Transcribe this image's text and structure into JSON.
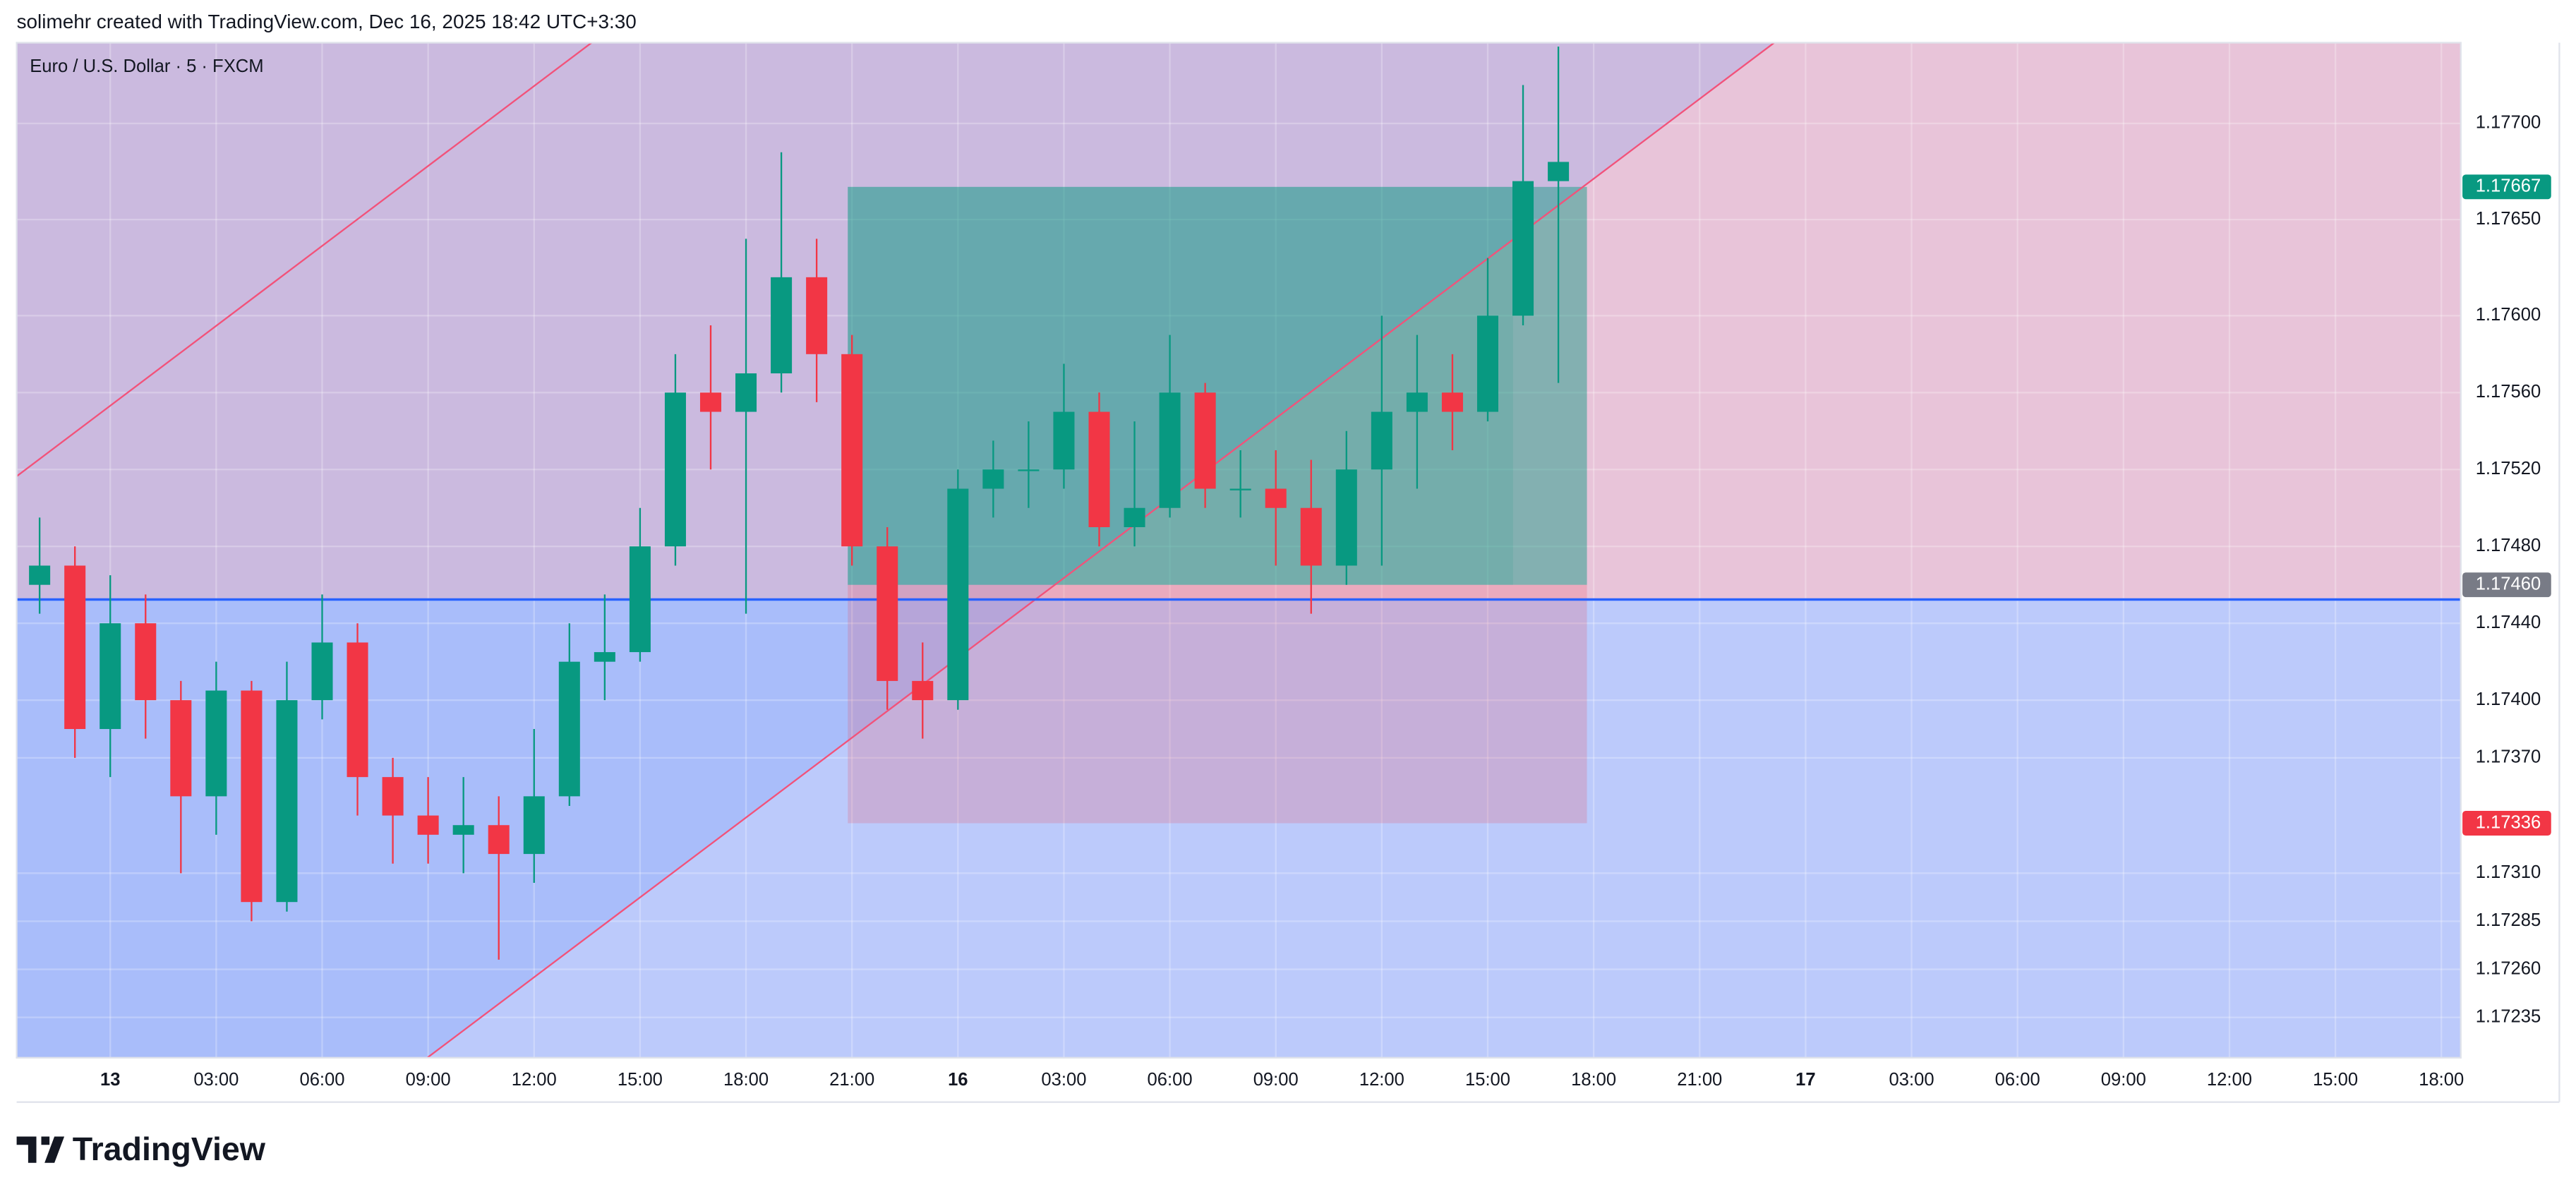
{
  "header": {
    "text": "solimehr created with TradingView.com, Dec 16, 2025 18:42 UTC+3:30"
  },
  "footer": {
    "logo": "TradingView"
  },
  "chart_data": {
    "type": "candlestick",
    "title": "Euro / U.S. Dollar · 5 · FXCM",
    "x": [
      -2,
      -1,
      0,
      1,
      2,
      3,
      4,
      5,
      6,
      7,
      8,
      9,
      10,
      11,
      12,
      13,
      14,
      15,
      16,
      17,
      18,
      19,
      20,
      21,
      22,
      23,
      24,
      25,
      26,
      27,
      28,
      29,
      30,
      31,
      32,
      33,
      34,
      35,
      36,
      37,
      38,
      39,
      40,
      41
    ],
    "open": [
      1.1746,
      1.1747,
      1.17385,
      1.1744,
      1.174,
      1.1735,
      1.17405,
      1.17295,
      1.174,
      1.1743,
      1.1736,
      1.1734,
      1.1733,
      1.17335,
      1.1732,
      1.1735,
      1.1742,
      1.17425,
      1.1748,
      1.1756,
      1.1755,
      1.1757,
      1.1762,
      1.1758,
      1.1748,
      1.1741,
      1.174,
      1.1751,
      1.1752,
      1.1752,
      1.1755,
      1.1749,
      1.175,
      1.1756,
      1.1751,
      1.1751,
      1.175,
      1.1747,
      1.1752,
      1.1755,
      1.1756,
      1.1755,
      1.176,
      1.1767
    ],
    "high": [
      1.17495,
      1.1748,
      1.17465,
      1.17455,
      1.1741,
      1.1742,
      1.1741,
      1.1742,
      1.17455,
      1.1744,
      1.1737,
      1.1736,
      1.1736,
      1.1735,
      1.17385,
      1.1744,
      1.17455,
      1.175,
      1.1758,
      1.17595,
      1.1764,
      1.17685,
      1.1764,
      1.1759,
      1.1749,
      1.1743,
      1.1752,
      1.17535,
      1.17545,
      1.17575,
      1.1756,
      1.17545,
      1.1759,
      1.17565,
      1.1753,
      1.1753,
      1.17525,
      1.1754,
      1.176,
      1.1759,
      1.1758,
      1.1763,
      1.1772,
      1.1774
    ],
    "low": [
      1.17445,
      1.1737,
      1.1736,
      1.1738,
      1.1731,
      1.1733,
      1.17285,
      1.1729,
      1.1739,
      1.1734,
      1.17315,
      1.17315,
      1.1731,
      1.17265,
      1.17305,
      1.17345,
      1.174,
      1.1742,
      1.1747,
      1.1752,
      1.17445,
      1.1756,
      1.17555,
      1.1747,
      1.17395,
      1.1738,
      1.17395,
      1.17495,
      1.175,
      1.1751,
      1.1748,
      1.1748,
      1.17495,
      1.175,
      1.17495,
      1.1747,
      1.17445,
      1.1746,
      1.1747,
      1.1751,
      1.1753,
      1.17545,
      1.17595,
      1.17565
    ],
    "close": [
      1.1747,
      1.17385,
      1.1744,
      1.174,
      1.1735,
      1.17405,
      1.17295,
      1.174,
      1.1743,
      1.1736,
      1.1734,
      1.1733,
      1.17335,
      1.1732,
      1.1735,
      1.1742,
      1.17425,
      1.1748,
      1.1756,
      1.1755,
      1.1757,
      1.1762,
      1.1758,
      1.1748,
      1.1741,
      1.174,
      1.1751,
      1.1752,
      1.1752,
      1.1755,
      1.1749,
      1.175,
      1.1756,
      1.1751,
      1.1751,
      1.175,
      1.1747,
      1.1752,
      1.1755,
      1.1756,
      1.1755,
      1.176,
      1.1767,
      1.1768
    ],
    "up_color": "#089981",
    "down_color": "#f23645",
    "xlim": [
      -2.65,
      66.55
    ],
    "xticks": [
      {
        "value": 0,
        "label": "13"
      },
      {
        "value": 3,
        "label": "03:00"
      },
      {
        "value": 6,
        "label": "06:00"
      },
      {
        "value": 9,
        "label": "09:00"
      },
      {
        "value": 12,
        "label": "12:00"
      },
      {
        "value": 15,
        "label": "15:00"
      },
      {
        "value": 18,
        "label": "18:00"
      },
      {
        "value": 21,
        "label": "21:00"
      },
      {
        "value": 24,
        "label": "16"
      },
      {
        "value": 27,
        "label": "03:00"
      },
      {
        "value": 30,
        "label": "06:00"
      },
      {
        "value": 33,
        "label": "09:00"
      },
      {
        "value": 36,
        "label": "12:00"
      },
      {
        "value": 39,
        "label": "15:00"
      },
      {
        "value": 42,
        "label": "18:00"
      },
      {
        "value": 45,
        "label": "21:00"
      },
      {
        "value": 48,
        "label": "17"
      },
      {
        "value": 51,
        "label": "03:00"
      },
      {
        "value": 54,
        "label": "06:00"
      },
      {
        "value": 57,
        "label": "09:00"
      },
      {
        "value": 60,
        "label": "12:00"
      },
      {
        "value": 63,
        "label": "15:00"
      },
      {
        "value": 66,
        "label": "18:00"
      }
    ],
    "ylim": [
      1.17214,
      1.17742
    ],
    "yticks": [
      {
        "value": 1.177,
        "label": "1.17700"
      },
      {
        "value": 1.1765,
        "label": "1.17650"
      },
      {
        "value": 1.176,
        "label": "1.17600"
      },
      {
        "value": 1.1756,
        "label": "1.17560"
      },
      {
        "value": 1.1752,
        "label": "1.17520"
      },
      {
        "value": 1.1748,
        "label": "1.17480"
      },
      {
        "value": 1.1744,
        "label": "1.17440"
      },
      {
        "value": 1.174,
        "label": "1.17400"
      },
      {
        "value": 1.1737,
        "label": "1.17370"
      },
      {
        "value": 1.1731,
        "label": "1.17310"
      },
      1.17285,
      {
        "value": 1.1726,
        "label": "1.17260"
      },
      1.17235
    ],
    "grid": true,
    "price_labels": [
      {
        "value": 1.17667,
        "label": "1.17667",
        "color": "#089981"
      },
      {
        "value": 1.1746,
        "label": "1.17460",
        "color": "#787b86"
      },
      {
        "value": 1.17336,
        "label": "1.17336",
        "color": "#f23645"
      }
    ]
  }
}
